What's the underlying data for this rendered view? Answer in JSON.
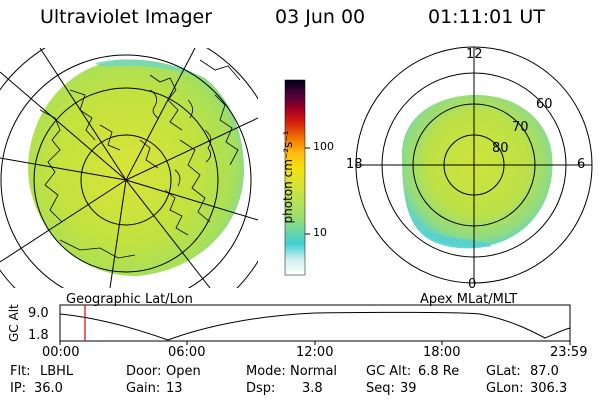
{
  "header": {
    "instrument": "Ultraviolet Imager",
    "date": "03 Jun 00",
    "time": "01:11:01 UT"
  },
  "left_panel": {
    "caption": "Geographic Lat/Lon"
  },
  "right_panel": {
    "caption": "Apex MLat/MLT",
    "mlt_labels": {
      "top": "12",
      "left": "18",
      "right": "6",
      "bottom": "0"
    },
    "mlat_labels": [
      "60",
      "70",
      "80"
    ]
  },
  "colorbar": {
    "unit": "photon cm⁻²s⁻¹",
    "tick_labels": [
      "100",
      "10"
    ],
    "stops": [
      "#ffffff",
      "#7ad9dd",
      "#2fd0d0",
      "#a8e070",
      "#cce43a",
      "#f0e010",
      "#ffc010",
      "#f08000",
      "#e03000",
      "#b00010",
      "#6a0040",
      "#2a0040",
      "#000020"
    ]
  },
  "altitude_plot": {
    "ylabel": "GC Alt",
    "y_ticks": [
      "9.0",
      "1.8"
    ],
    "x_ticks": [
      "00:00",
      "06:00",
      "12:00",
      "18:00",
      "23:59"
    ],
    "marker_time": "01:11",
    "marker_color": "#e00000"
  },
  "info": {
    "flt_label": "Flt:",
    "flt_value": "LBHL",
    "ip_label": "IP:",
    "ip_value": "36.0",
    "door_label": "Door:",
    "door_value": "Open",
    "gain_label": "Gain:",
    "gain_value": "13",
    "mode_label": "Mode:",
    "mode_value": "Normal",
    "dsp_label": "Dsp:",
    "dsp_value": "3.8",
    "gcalt_label": "GC Alt:",
    "gcalt_value": "6.8 Re",
    "seq_label": "Seq:",
    "seq_value": "39",
    "glat_label": "GLat:",
    "glat_value": "87.0",
    "glon_label": "GLon:",
    "glon_value": "306.3"
  },
  "colors": {
    "aurora_light": "#b5e56a",
    "aurora_main": "#c6e23c",
    "aurora_cyan": "#58d2cf"
  }
}
